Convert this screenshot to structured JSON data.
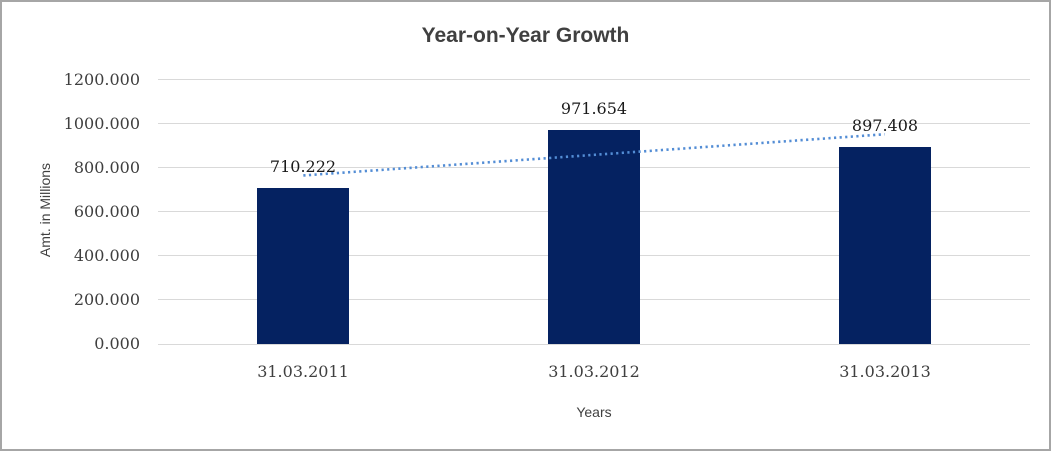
{
  "frame": {
    "background": "#ffffff",
    "border_color": "#a6a6a6"
  },
  "chart_data": {
    "type": "bar",
    "title": "Year-on-Year Growth",
    "categories": [
      "31.03.2011",
      "31.03.2012",
      "31.03.2013"
    ],
    "values": [
      710.222,
      971.654,
      897.408
    ],
    "data_labels": [
      "710.222",
      "971.654",
      "897.408"
    ],
    "xlabel": "Years",
    "ylabel": "Amt. in Millions",
    "ylim": [
      0,
      1200
    ],
    "ytick_step": 200,
    "ytick_labels": [
      "0.000",
      "200.000",
      "400.000",
      "600.000",
      "800.000",
      "1000.000",
      "1200.000"
    ],
    "grid": true,
    "legend": "none",
    "bar_color": "#052261",
    "gridline_color": "#d9d9d9",
    "trendline": {
      "type": "linear",
      "style": "dotted",
      "color": "#538dd5"
    }
  }
}
